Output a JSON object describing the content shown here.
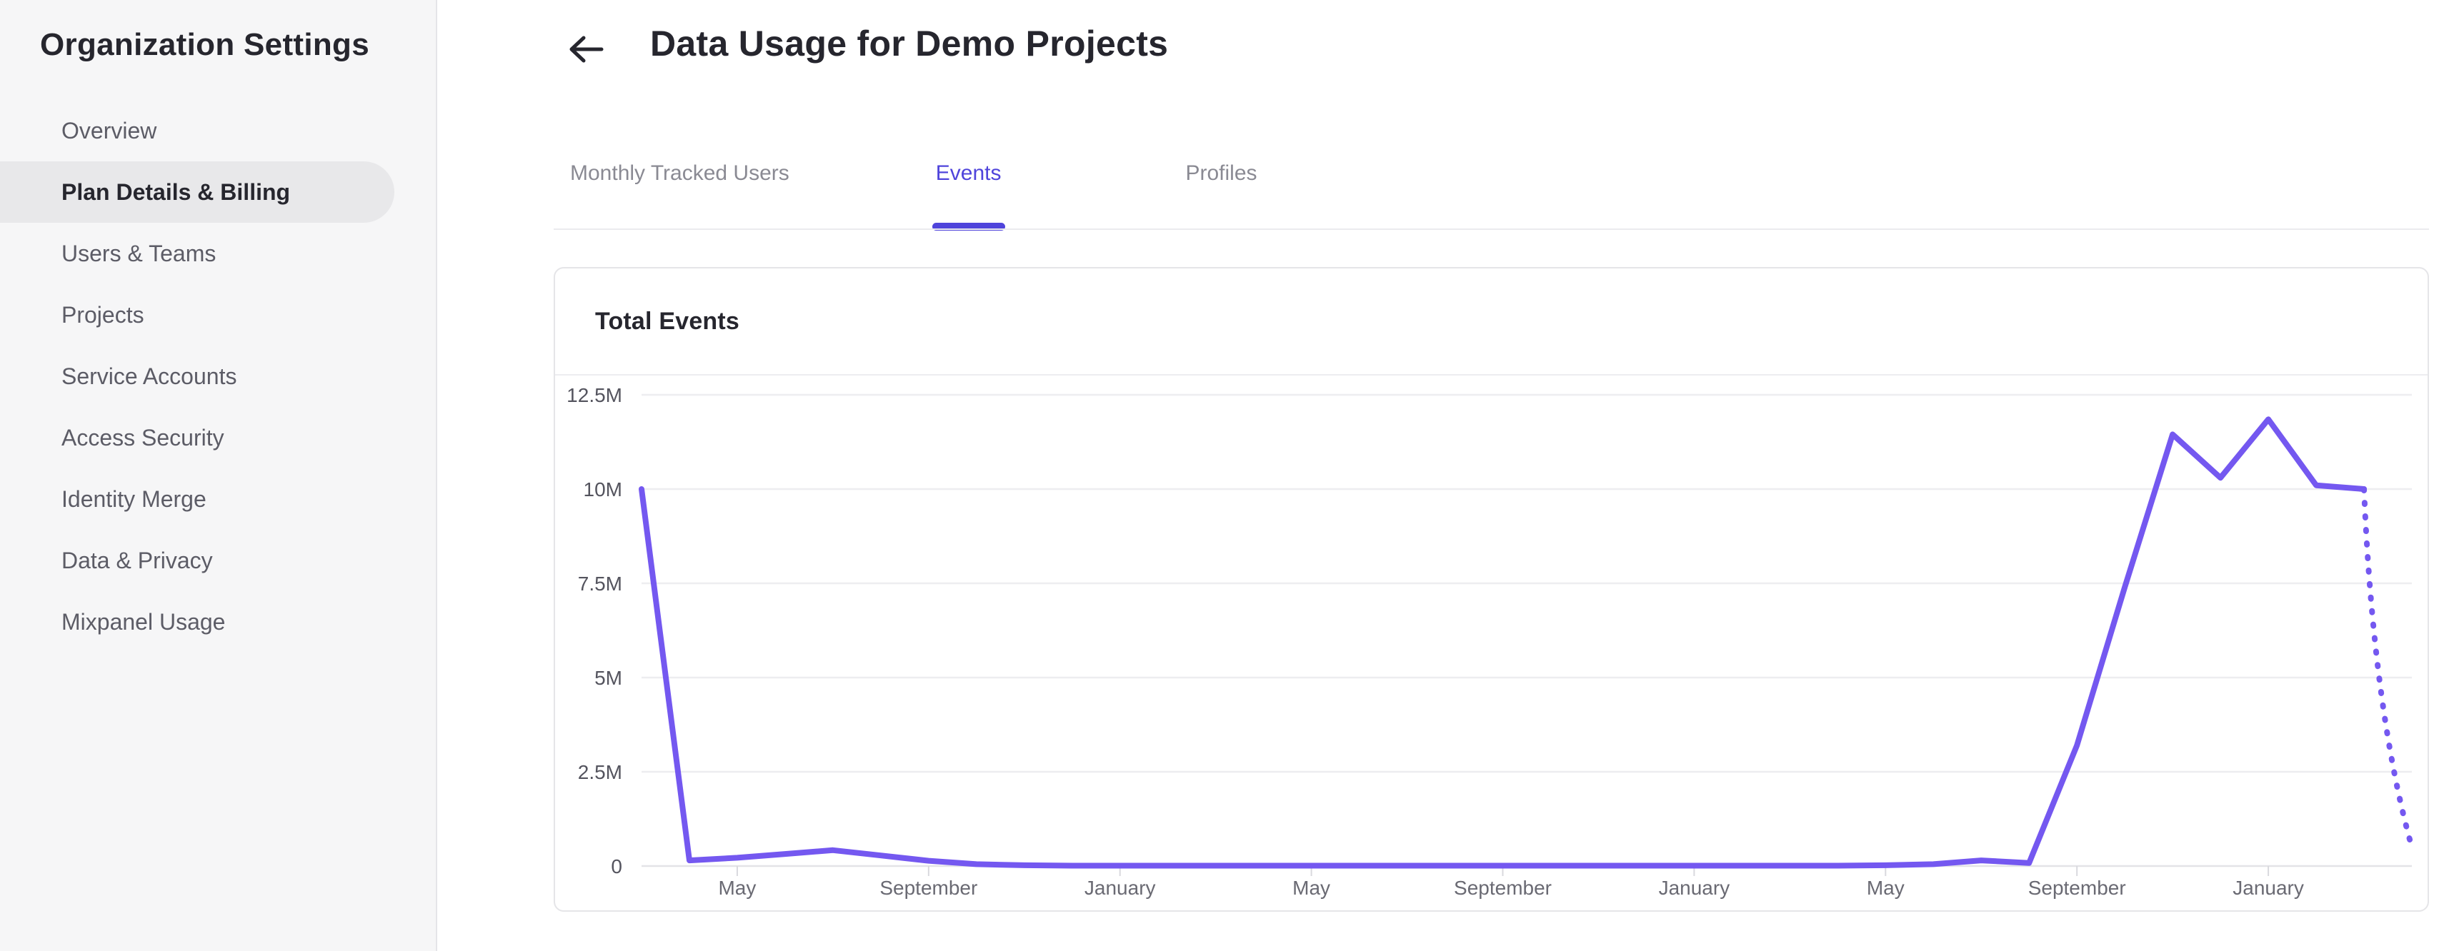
{
  "sidebar": {
    "title": "Organization Settings",
    "items": [
      {
        "label": "Overview",
        "active": false
      },
      {
        "label": "Plan Details & Billing",
        "active": true
      },
      {
        "label": "Users & Teams",
        "active": false
      },
      {
        "label": "Projects",
        "active": false
      },
      {
        "label": "Service Accounts",
        "active": false
      },
      {
        "label": "Access Security",
        "active": false
      },
      {
        "label": "Identity Merge",
        "active": false
      },
      {
        "label": "Data & Privacy",
        "active": false
      },
      {
        "label": "Mixpanel Usage",
        "active": false
      }
    ]
  },
  "header": {
    "title": "Data Usage for Demo Projects",
    "back_icon": "arrow-left-icon"
  },
  "tabs": [
    {
      "label": "Monthly Tracked Users",
      "active": false
    },
    {
      "label": "Events",
      "active": true
    },
    {
      "label": "Profiles",
      "active": false
    }
  ],
  "colors": {
    "accent": "#4f44db",
    "chart_line": "#7458f0",
    "sidebar_active_bg": "#e8e8ea",
    "gridline": "#ededf0",
    "axis_line": "#e3e3e7"
  },
  "chart_data": {
    "type": "line",
    "title": "Total Events",
    "xlabel": "",
    "ylabel": "",
    "ylim_millions": [
      0,
      12.5
    ],
    "grid": "horizontal",
    "legend": "none",
    "y_ticks": [
      {
        "label": "12.5M",
        "value_millions": 12.5
      },
      {
        "label": "10M",
        "value_millions": 10
      },
      {
        "label": "7.5M",
        "value_millions": 7.5
      },
      {
        "label": "5M",
        "value_millions": 5
      },
      {
        "label": "2.5M",
        "value_millions": 2.5
      },
      {
        "label": "0",
        "value_millions": 0
      }
    ],
    "x_ticks": [
      {
        "index": 2,
        "label": "May"
      },
      {
        "index": 6,
        "label": "September"
      },
      {
        "index": 10,
        "label": "January"
      },
      {
        "index": 14,
        "label": "May"
      },
      {
        "index": 18,
        "label": "September"
      },
      {
        "index": 22,
        "label": "January"
      },
      {
        "index": 26,
        "label": "May"
      },
      {
        "index": 30,
        "label": "September"
      },
      {
        "index": 34,
        "label": "January"
      }
    ],
    "series": [
      {
        "name": "Total Events",
        "color": "#7458f0",
        "dotted_tail_points": 1,
        "values_millions": [
          10,
          0.15,
          0.22,
          0.32,
          0.42,
          0.28,
          0.14,
          0.05,
          0.02,
          0.01,
          0.01,
          0.01,
          0.01,
          0.01,
          0.01,
          0.01,
          0.01,
          0.01,
          0.01,
          0.01,
          0.01,
          0.01,
          0.01,
          0.01,
          0.01,
          0.01,
          0.02,
          0.05,
          0.15,
          0.08,
          3.2,
          7.4,
          11.45,
          10.3,
          11.85,
          10.1,
          10.0,
          0.5
        ]
      }
    ]
  }
}
